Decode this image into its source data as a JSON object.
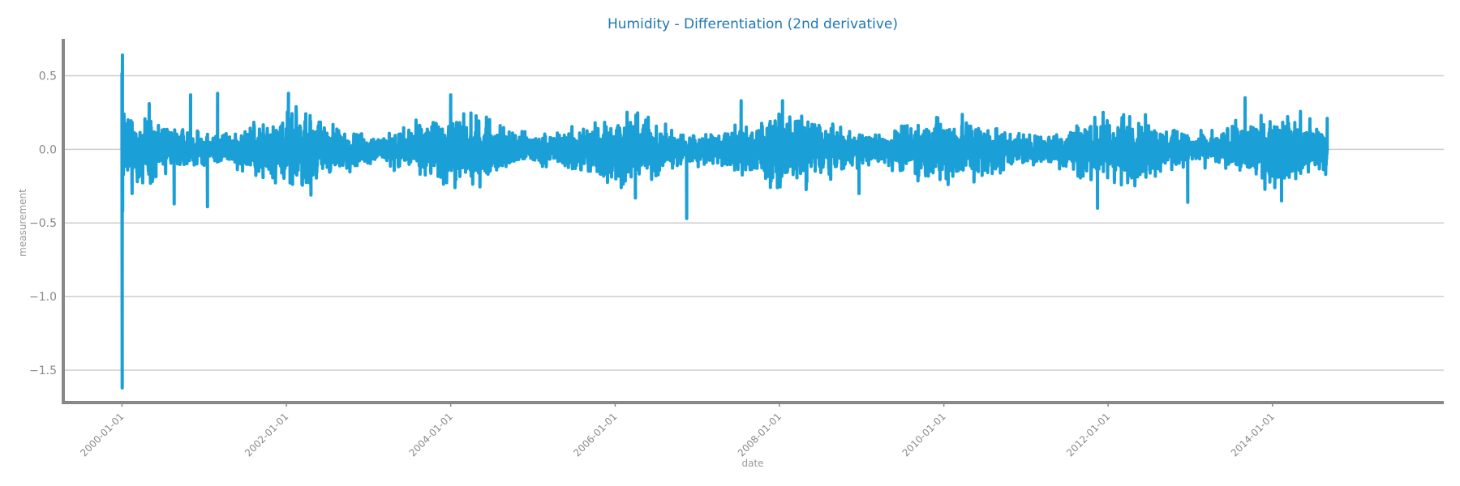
{
  "chart_data": {
    "type": "line",
    "title": "Humidity - Differentiation (2nd derivative)",
    "xlabel": "date",
    "ylabel": "measurement",
    "x_range": [
      "1999-04-15",
      "2016-02-01"
    ],
    "x_data_range": [
      "2000-01-01",
      "2014-09-01"
    ],
    "ylim": [
      -1.72,
      0.75
    ],
    "yticks": [
      0.5,
      0.0,
      -0.5,
      -1.0,
      -1.5
    ],
    "ytick_labels": [
      "0.5",
      "0.0",
      "−0.5",
      "−1.0",
      "−1.5"
    ],
    "xticks": [
      "2000-01-01",
      "2002-01-01",
      "2004-01-01",
      "2006-01-01",
      "2008-01-01",
      "2010-01-01",
      "2012-01-01",
      "2014-01-01"
    ],
    "grid": "horizontal",
    "legend": "none",
    "series": [
      {
        "color": "#1a9fd6",
        "note_values": "dense daily noise around 0 with amplitude about 0.2; initial spike to 0.64 and -1.62 at 2000-01-01",
        "points": [
          {
            "x": "2000-01-01",
            "y": 0.52
          },
          {
            "x": "2000-01-02",
            "y": -1.62
          },
          {
            "x": "2000-01-03",
            "y": 0.64
          },
          {
            "x": "2000-01-04",
            "y": -0.42
          },
          {
            "x": "2000-02-15",
            "y": -0.3
          },
          {
            "x": "2000-05-01",
            "y": 0.31
          },
          {
            "x": "2000-08-20",
            "y": -0.37
          },
          {
            "x": "2000-11-01",
            "y": 0.37
          },
          {
            "x": "2001-01-15",
            "y": -0.39
          },
          {
            "x": "2001-03-01",
            "y": 0.38
          },
          {
            "x": "2002-01-10",
            "y": 0.38
          },
          {
            "x": "2002-04-20",
            "y": -0.31
          },
          {
            "x": "2004-01-01",
            "y": 0.37
          },
          {
            "x": "2006-04-01",
            "y": -0.33
          },
          {
            "x": "2006-11-15",
            "y": -0.47
          },
          {
            "x": "2007-07-15",
            "y": 0.33
          },
          {
            "x": "2008-01-15",
            "y": 0.33
          },
          {
            "x": "2008-12-20",
            "y": -0.3
          },
          {
            "x": "2011-11-15",
            "y": -0.4
          },
          {
            "x": "2012-12-20",
            "y": -0.36
          },
          {
            "x": "2013-09-01",
            "y": 0.35
          },
          {
            "x": "2014-02-10",
            "y": -0.35
          },
          {
            "x": "2014-09-01",
            "y": 0.21
          }
        ]
      }
    ]
  }
}
